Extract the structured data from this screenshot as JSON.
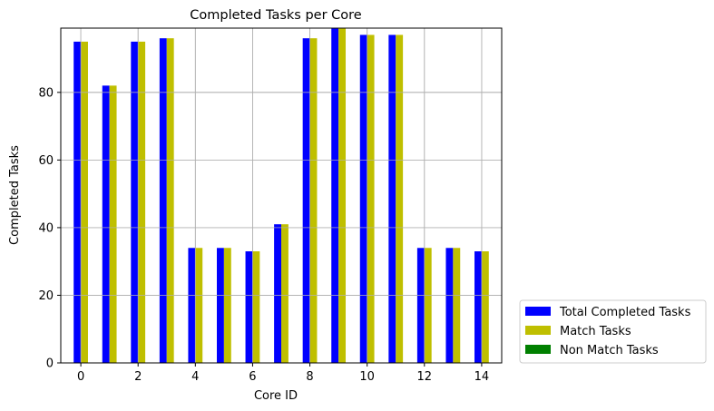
{
  "chart_data": {
    "type": "bar",
    "title": "Completed Tasks per Core",
    "xlabel": "Core ID",
    "ylabel": "Completed Tasks",
    "categories": [
      "0",
      "1",
      "2",
      "3",
      "4",
      "5",
      "6",
      "7",
      "8",
      "9",
      "10",
      "11",
      "12",
      "13",
      "14"
    ],
    "xlim": [
      -0.7,
      14.7
    ],
    "ylim": [
      0,
      99
    ],
    "x_ticks": [
      "0",
      "2",
      "4",
      "6",
      "8",
      "10",
      "12",
      "14"
    ],
    "y_ticks": [
      "0",
      "20",
      "40",
      "60",
      "80"
    ],
    "grid": true,
    "legend_placement": "lower right, outside the plot",
    "series": [
      {
        "name": "Total Completed Tasks",
        "color": "#0000ff",
        "values": [
          95,
          82,
          95,
          96,
          34,
          34,
          33,
          41,
          96,
          99,
          97,
          97,
          34,
          34,
          33
        ]
      },
      {
        "name": "Match Tasks",
        "color": "#bfbf00",
        "values": [
          95,
          82,
          95,
          96,
          34,
          34,
          33,
          41,
          96,
          99,
          97,
          97,
          34,
          34,
          33
        ]
      },
      {
        "name": "Non Match Tasks",
        "color": "#008000",
        "values": [
          0,
          0,
          0,
          0,
          0,
          0,
          0,
          0,
          0,
          0,
          0,
          0,
          0,
          0,
          0
        ]
      }
    ]
  }
}
